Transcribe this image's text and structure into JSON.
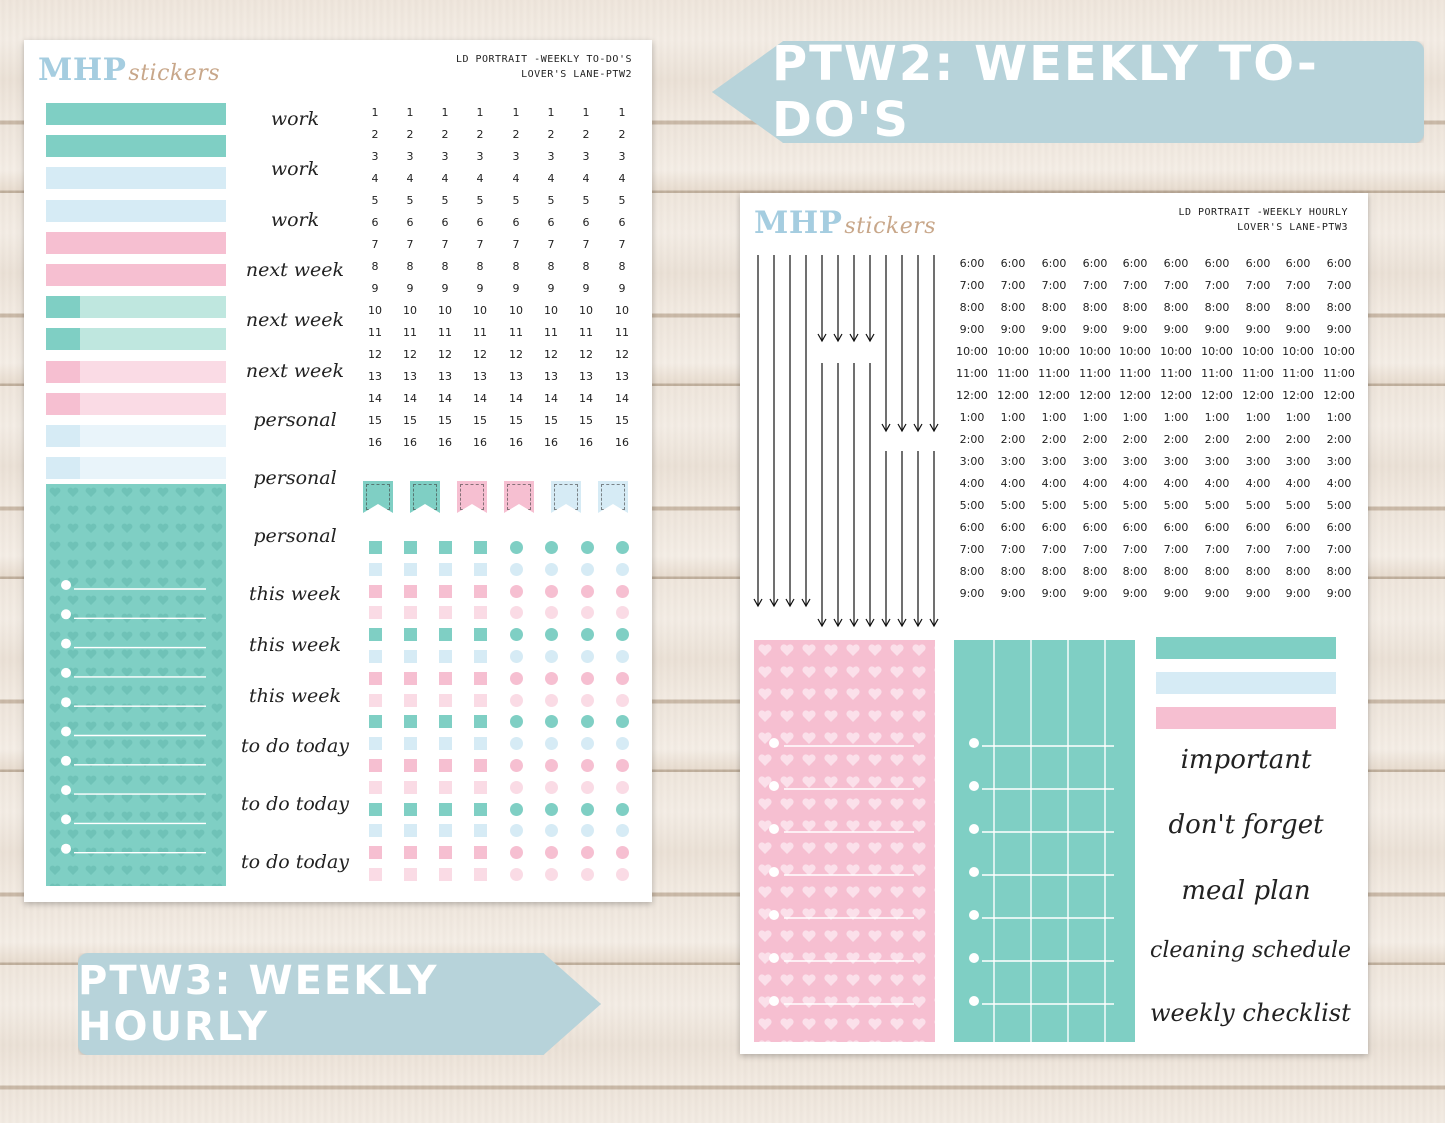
{
  "banners": {
    "top_right": "PTW2: WEEKLY TO-DO'S",
    "bottom_left": "PTW3: WEEKLY HOURLY"
  },
  "sheet1": {
    "logo_main": "MHP",
    "logo_script": "stickers",
    "label_line1": "LD PORTRAIT -WEEKLY TO-DO'S",
    "label_line2": "LOVER'S LANE-PTW2",
    "word_labels": [
      "work",
      "work",
      "work",
      "next week",
      "next week",
      "next week",
      "personal",
      "personal",
      "personal",
      "this week",
      "this week",
      "this week",
      "to do today",
      "to do today",
      "to do today"
    ],
    "numbers": [
      "1",
      "2",
      "3",
      "4",
      "5",
      "6",
      "7",
      "8",
      "9",
      "10",
      "11",
      "12",
      "13",
      "14",
      "15",
      "16"
    ]
  },
  "sheet2": {
    "logo_main": "MHP",
    "logo_script": "stickers",
    "label_line1": "LD PORTRAIT -WEEKLY HOURLY",
    "label_line2": "LOVER'S LANE-PTW3",
    "times": [
      "6:00",
      "7:00",
      "8:00",
      "9:00",
      "10:00",
      "11:00",
      "12:00",
      "1:00",
      "2:00",
      "3:00",
      "4:00",
      "5:00",
      "6:00",
      "7:00",
      "8:00",
      "9:00"
    ],
    "word_labels": [
      "important",
      "don't forget",
      "meal plan",
      "cleaning schedule",
      "weekly checklist"
    ]
  },
  "colors": {
    "teal": "#7fcfc4",
    "light_teal": "#bfe7df",
    "light_blue": "#d6ebf5",
    "pink": "#f6bfd1",
    "light_pink": "#fadbe5",
    "banner": "#b7d3da"
  }
}
